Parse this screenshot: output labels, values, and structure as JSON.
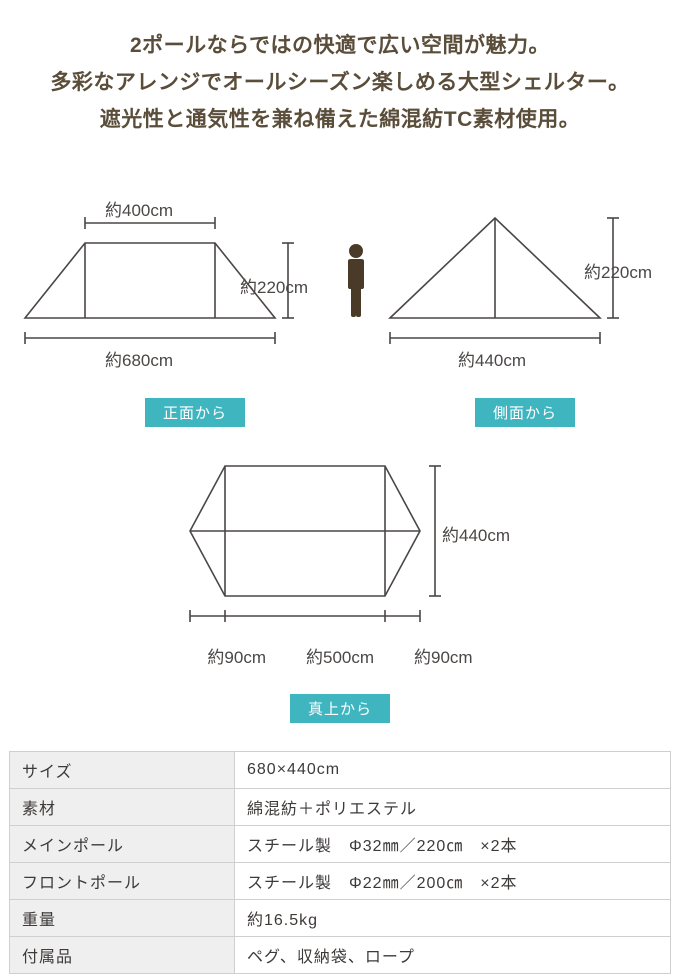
{
  "headline": {
    "line1": "2ポールならではの快適で広い空間が魅力。",
    "line2": "多彩なアレンジでオールシーズン楽しめる大型シェルター。",
    "line3": "遮光性と通気性を兼ね備えた綿混紡TC素材使用。"
  },
  "colors": {
    "text": "#5a4d3a",
    "line": "#4a4745",
    "tag_bg": "#3fb5c0",
    "tag_fg": "#ffffff",
    "th_bg": "#efefef",
    "border": "#cfcfcf",
    "person": "#4a3a28"
  },
  "front": {
    "top_dim": "約400cm",
    "height_dim": "約220cm",
    "base_dim": "約680cm",
    "tag": "正面から"
  },
  "side": {
    "height_dim": "約220cm",
    "base_dim": "約440cm",
    "tag": "側面から"
  },
  "top": {
    "left_dim": "約90cm",
    "mid_dim": "約500cm",
    "right_dim": "約90cm",
    "height_dim": "約440cm",
    "tag": "真上から"
  },
  "spec": {
    "rows": [
      {
        "label": "サイズ",
        "value": "680×440cm"
      },
      {
        "label": "素材",
        "value": "綿混紡＋ポリエステル"
      },
      {
        "label": "メインポール",
        "value": "スチール製　Φ32㎜／220㎝　×2本"
      },
      {
        "label": "フロントポール",
        "value": "スチール製　Φ22㎜／200㎝　×2本"
      },
      {
        "label": "重量",
        "value": "約16.5kg"
      },
      {
        "label": "付属品",
        "value": "ペグ、収納袋、ロープ"
      }
    ]
  }
}
